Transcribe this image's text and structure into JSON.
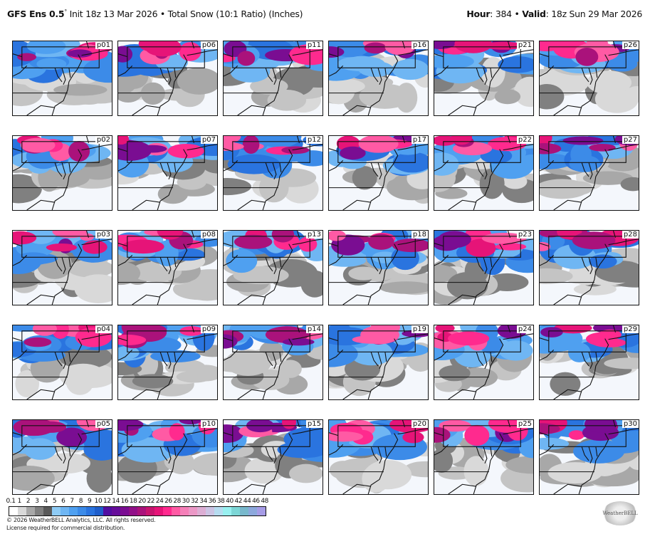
{
  "header": {
    "model": "GFS Ens 0.5",
    "degree": "°",
    "init": " Init 18z 13 Mar 2026 • Total Snow (10:1 Ratio) (Inches)",
    "hour_label": "Hour",
    "hour": ": 384 • ",
    "valid_label": "Valid",
    "valid": ": 18z Sun 29 Mar 2026"
  },
  "panels": [
    "p01",
    "p06",
    "p11",
    "p16",
    "p21",
    "p26",
    "p02",
    "p07",
    "p12",
    "p17",
    "p22",
    "p27",
    "p03",
    "p08",
    "p13",
    "p18",
    "p23",
    "p28",
    "p04",
    "p09",
    "p14",
    "p19",
    "p24",
    "p29",
    "p05",
    "p10",
    "p15",
    "p20",
    "p25",
    "p30"
  ],
  "colorbar": {
    "labels": [
      "0.1",
      "1",
      "2",
      "3",
      "4",
      "5",
      "6",
      "7",
      "8",
      "9",
      "10",
      "12",
      "14",
      "16",
      "18",
      "20",
      "22",
      "24",
      "26",
      "28",
      "30",
      "32",
      "34",
      "36",
      "38",
      "40",
      "42",
      "44",
      "46",
      "48"
    ],
    "colors": [
      "#ffffff",
      "#d9d9d9",
      "#a8a8a8",
      "#808080",
      "#595959",
      "#8ecbf5",
      "#6fb6f3",
      "#4fa0f0",
      "#3c8be8",
      "#2a74df",
      "#1f5ecb",
      "#520ea0",
      "#660d9a",
      "#7a0d92",
      "#911088",
      "#aa127b",
      "#c8146f",
      "#e61478",
      "#ff2a8e",
      "#ff5aa4",
      "#f57fb8",
      "#eb98c6",
      "#dcaed4",
      "#ccc4e4",
      "#b6dcf0",
      "#98f0f0",
      "#7cd6d6",
      "#78b8cc",
      "#8ca8dc",
      "#a69ce6",
      "#c084f2"
    ]
  },
  "footer": {
    "copyright": "© 2026 WeatherBELL Analytics, LLC. All rights reserved.",
    "license": "License required for commercial distribution.",
    "logo": "WeatherBELL"
  }
}
